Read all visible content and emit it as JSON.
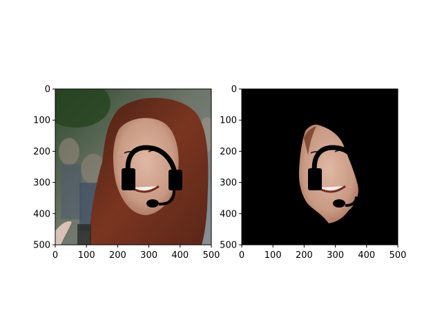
{
  "chart_data": [
    {
      "type": "image",
      "content": "photo of a smiling woman with long auburn hair, black headset drawn over her face, blurred outdoor background",
      "xlim": [
        0,
        500
      ],
      "ylim": [
        500,
        0
      ],
      "xticks": [
        0,
        100,
        200,
        300,
        400,
        500
      ],
      "yticks": [
        0,
        100,
        200,
        300,
        400,
        500
      ],
      "title": "",
      "xlabel": "",
      "ylabel": ""
    },
    {
      "type": "image",
      "content": "same face segmented on a black background with the black headset overlay",
      "xlim": [
        0,
        500
      ],
      "ylim": [
        500,
        0
      ],
      "xticks": [
        0,
        100,
        200,
        300,
        400,
        500
      ],
      "yticks": [
        0,
        100,
        200,
        300,
        400,
        500
      ],
      "title": "",
      "xlabel": "",
      "ylabel": ""
    }
  ],
  "colors": {
    "background_black": "#000000",
    "hair": "#6b2e1a",
    "skin": "#c9a08c",
    "headset": "#000000"
  }
}
